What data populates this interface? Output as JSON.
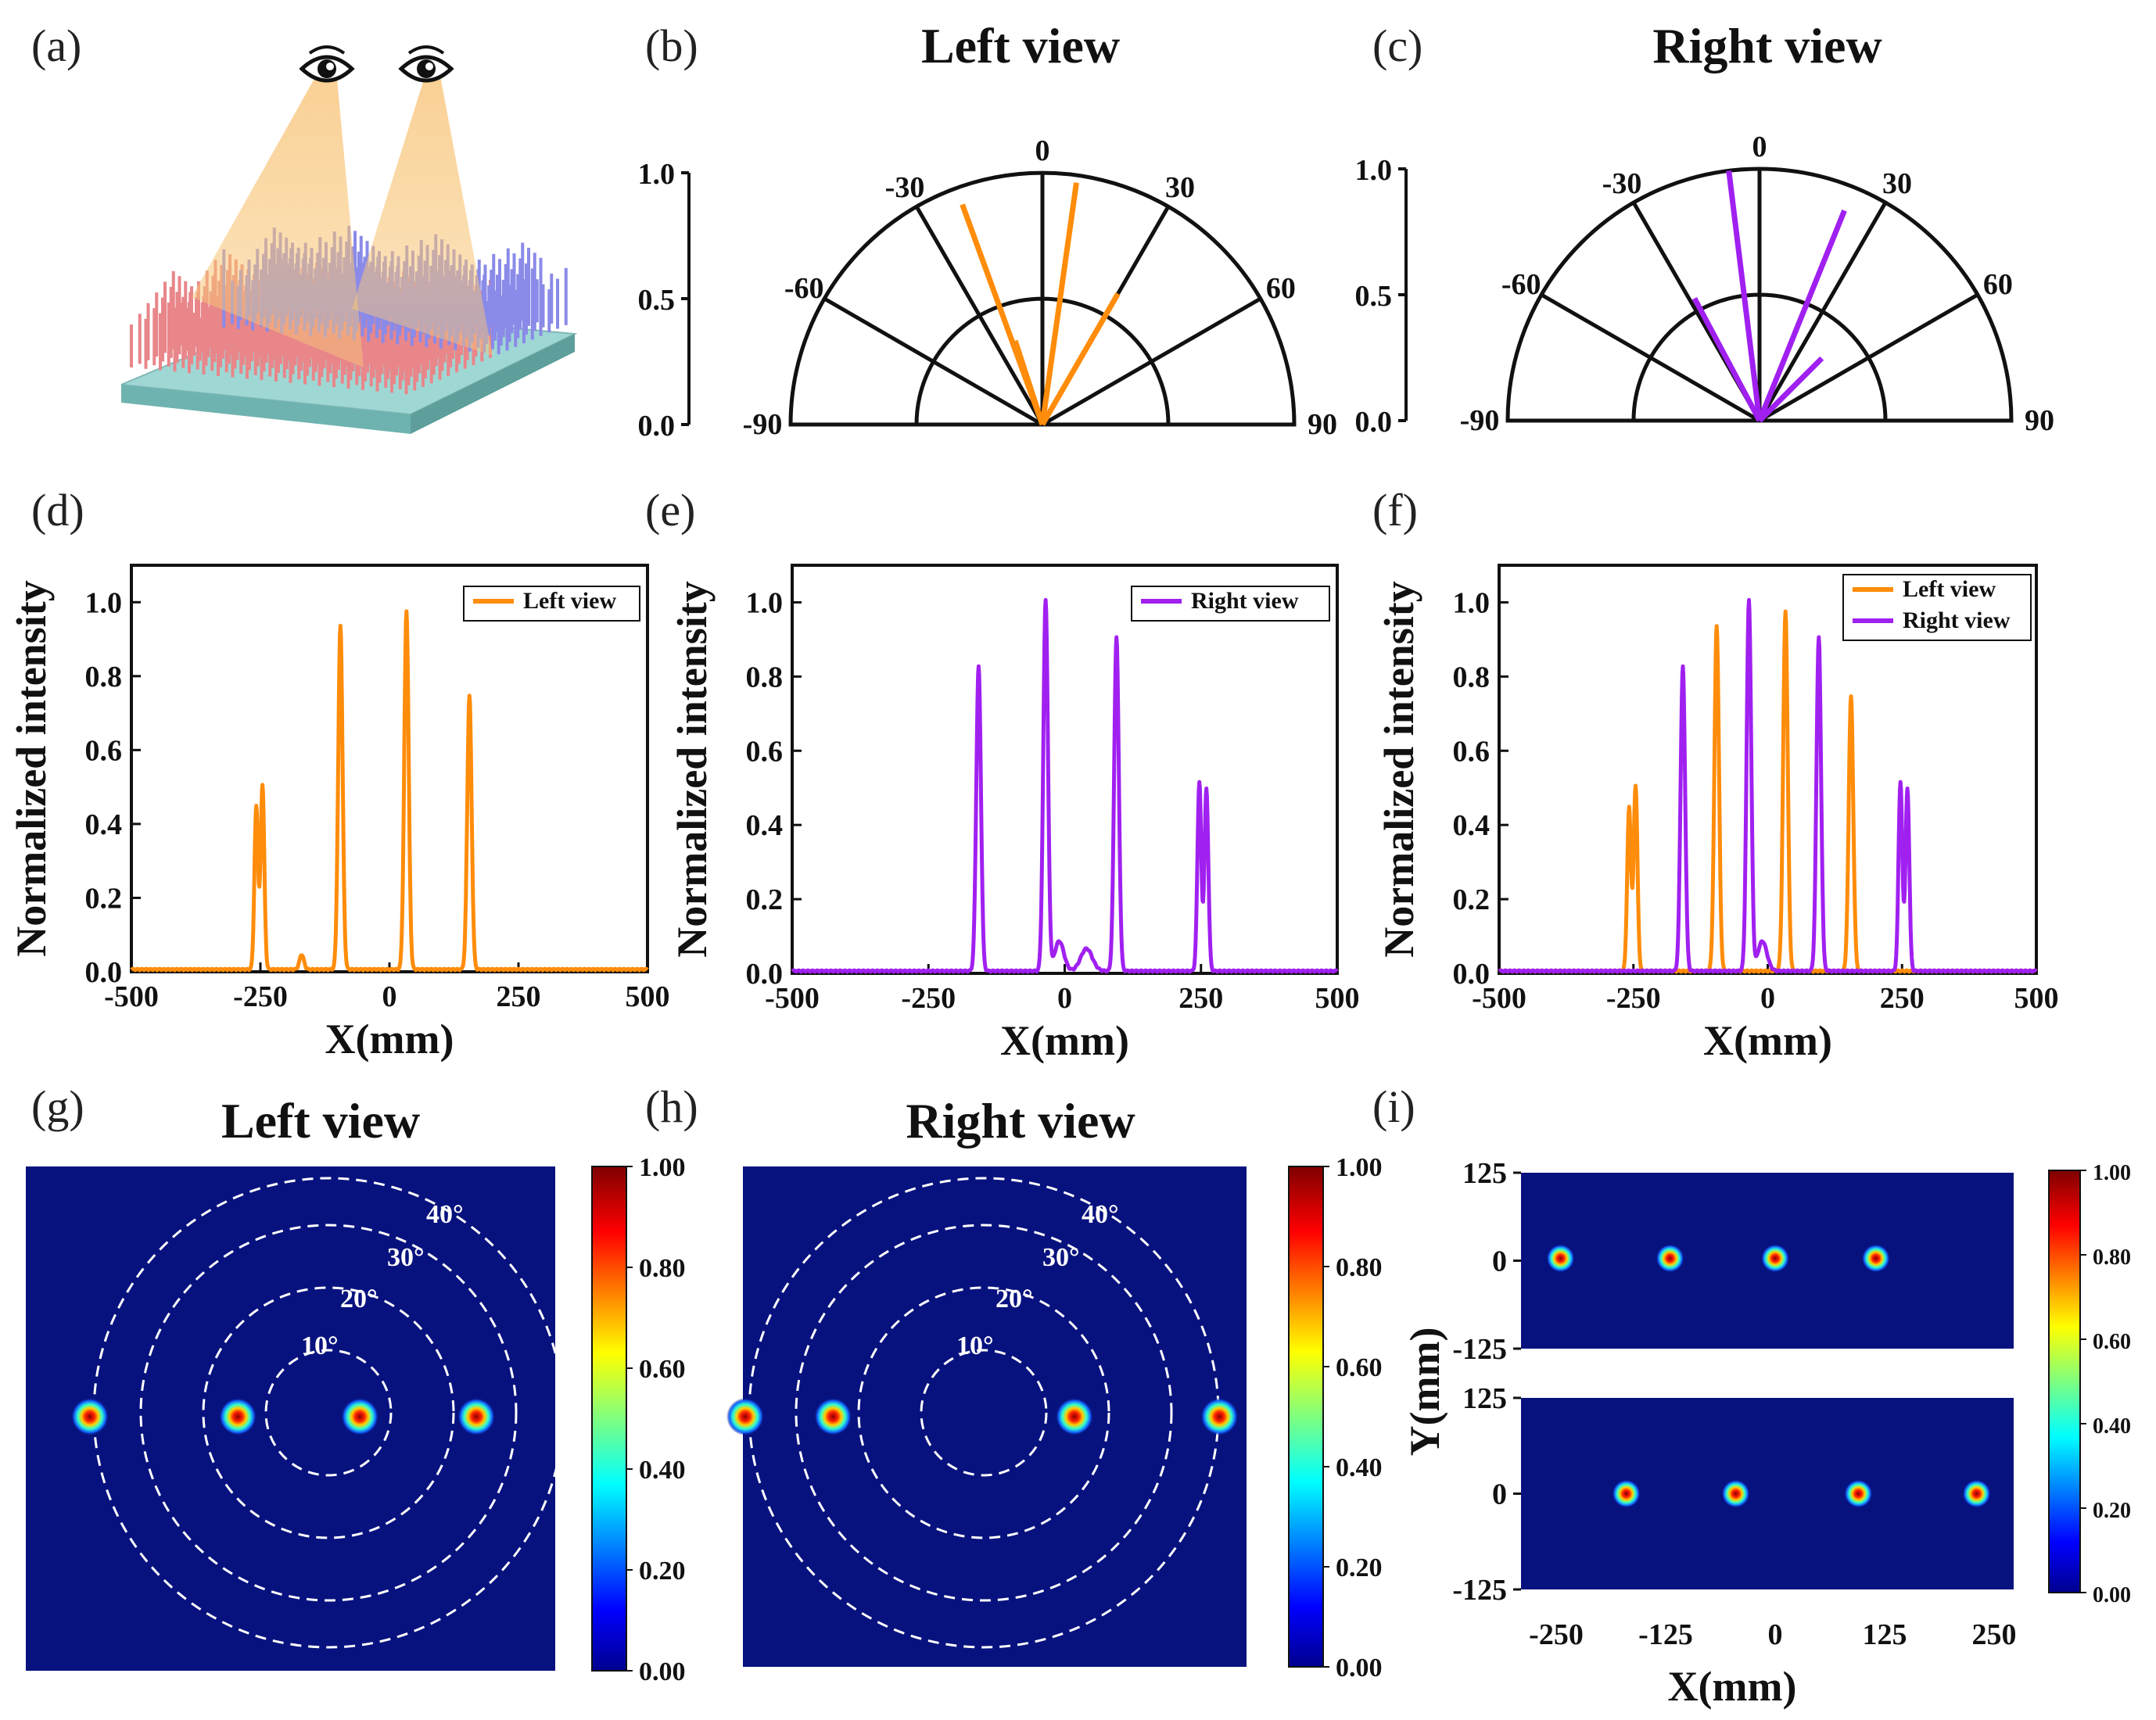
{
  "panels": {
    "a": "(a)",
    "b": "(b)",
    "c": "(c)",
    "d": "(d)",
    "e": "(e)",
    "f": "(f)",
    "g": "(g)",
    "h": "(h)",
    "i": "(i)"
  },
  "colors": {
    "left": "#ff8c0a",
    "right": "#a020f0",
    "map_bg": "#08127e",
    "black": "#111111"
  },
  "icons": [
    "eye-icon",
    "eye-icon",
    "metasurface-pillar-array"
  ],
  "polar": {
    "angle_labels": [
      "0",
      "-30",
      "30",
      "-60",
      "60",
      "-90",
      "90"
    ],
    "r_labels": [
      "0.0",
      "0.5",
      "1.0"
    ]
  },
  "chart_data": [
    {
      "id": "b",
      "type": "polar-bar",
      "title": "Left view",
      "color": "left",
      "theta_range": [
        -90,
        90
      ],
      "r_range": [
        0,
        1
      ],
      "values": [
        {
          "angle": -20,
          "r": 0.93
        },
        {
          "angle": -18,
          "r": 0.35
        },
        {
          "angle": 8,
          "r": 0.97
        },
        {
          "angle": 30,
          "r": 0.6
        }
      ]
    },
    {
      "id": "c",
      "type": "polar-bar",
      "title": "Right view",
      "color": "right",
      "theta_range": [
        -90,
        90
      ],
      "r_range": [
        0,
        1
      ],
      "values": [
        {
          "angle": -7,
          "r": 1.0
        },
        {
          "angle": -28,
          "r": 0.55
        },
        {
          "angle": 22,
          "r": 0.9
        },
        {
          "angle": 45,
          "r": 0.35
        }
      ]
    },
    {
      "id": "d",
      "type": "line",
      "xlabel": "X(mm)",
      "ylabel": "Normalized intensity",
      "xlim": [
        -500,
        500
      ],
      "ylim": [
        0,
        1.1
      ],
      "xticks": [
        -500,
        -250,
        0,
        250,
        500
      ],
      "yticks": [
        0.0,
        0.2,
        0.4,
        0.6,
        0.8,
        1.0
      ],
      "legend": "top-right",
      "series": [
        {
          "name": "Left view",
          "color": "left",
          "peaks": [
            [
              -258,
              0.44,
              5
            ],
            [
              -246,
              0.5,
              5
            ],
            [
              -95,
              0.93,
              6
            ],
            [
              33,
              0.97,
              6
            ],
            [
              155,
              0.74,
              6
            ],
            [
              -170,
              0.04,
              6
            ]
          ]
        }
      ]
    },
    {
      "id": "e",
      "type": "line",
      "xlabel": "X(mm)",
      "ylabel": "Normalized intensity",
      "xlim": [
        -500,
        500
      ],
      "ylim": [
        0,
        1.1
      ],
      "xticks": [
        -500,
        -250,
        0,
        250,
        500
      ],
      "yticks": [
        0.0,
        0.2,
        0.4,
        0.6,
        0.8,
        1.0
      ],
      "legend": "top-right",
      "series": [
        {
          "name": "Right view",
          "color": "right",
          "peaks": [
            [
              -158,
              0.82,
              6
            ],
            [
              -35,
              1.0,
              6
            ],
            [
              95,
              0.9,
              6
            ],
            [
              247,
              0.51,
              5
            ],
            [
              260,
              0.49,
              5
            ],
            [
              -10,
              0.08,
              12
            ],
            [
              40,
              0.06,
              15
            ]
          ]
        }
      ]
    },
    {
      "id": "f",
      "type": "line",
      "xlabel": "X(mm)",
      "ylabel": "Normalized intensity",
      "xlim": [
        -500,
        500
      ],
      "ylim": [
        0,
        1.1
      ],
      "xticks": [
        -500,
        -250,
        0,
        250,
        500
      ],
      "yticks": [
        0.0,
        0.2,
        0.4,
        0.6,
        0.8,
        1.0
      ],
      "legend": "top-right",
      "series": [
        {
          "name": "Left view",
          "color": "left",
          "peaks": [
            [
              -258,
              0.44,
              5
            ],
            [
              -246,
              0.5,
              5
            ],
            [
              -95,
              0.93,
              6
            ],
            [
              33,
              0.97,
              6
            ],
            [
              155,
              0.74,
              6
            ]
          ]
        },
        {
          "name": "Right view",
          "color": "right",
          "peaks": [
            [
              -158,
              0.82,
              6
            ],
            [
              -35,
              1.0,
              6
            ],
            [
              95,
              0.9,
              6
            ],
            [
              247,
              0.51,
              5
            ],
            [
              260,
              0.49,
              5
            ],
            [
              -10,
              0.08,
              12
            ]
          ]
        }
      ]
    },
    {
      "id": "g",
      "type": "heatmap",
      "title": "Left view",
      "rings": [
        "10°",
        "20°",
        "30°",
        "40°"
      ],
      "spots_x_mm": [
        -250,
        -95,
        33,
        155
      ],
      "colorbar": [
        "1.00",
        "0.80",
        "0.60",
        "0.40",
        "0.20",
        "0.00"
      ]
    },
    {
      "id": "h",
      "type": "heatmap",
      "title": "Right view",
      "rings": [
        "10°",
        "20°",
        "30°",
        "40°"
      ],
      "spots_x_mm": [
        -250,
        -158,
        95,
        247
      ],
      "colorbar": [
        "1.00",
        "0.80",
        "0.60",
        "0.40",
        "0.20",
        "0.00"
      ]
    },
    {
      "id": "i",
      "type": "heatmap",
      "xlabel": "X(mm)",
      "ylabel": "Y(mm)",
      "xticks": [
        "-250",
        "-125",
        "0",
        "125",
        "250"
      ],
      "yticks_top": [
        "125",
        "0",
        "-125"
      ],
      "yticks_bottom": [
        "125",
        "0",
        "-125"
      ],
      "top_spots_x_mm": [
        -245,
        -120,
        0,
        115
      ],
      "bottom_spots_x_mm": [
        -170,
        -45,
        95,
        230
      ],
      "colorbar": [
        "1.00",
        "0.80",
        "0.60",
        "0.40",
        "0.20",
        "0.00"
      ]
    }
  ]
}
